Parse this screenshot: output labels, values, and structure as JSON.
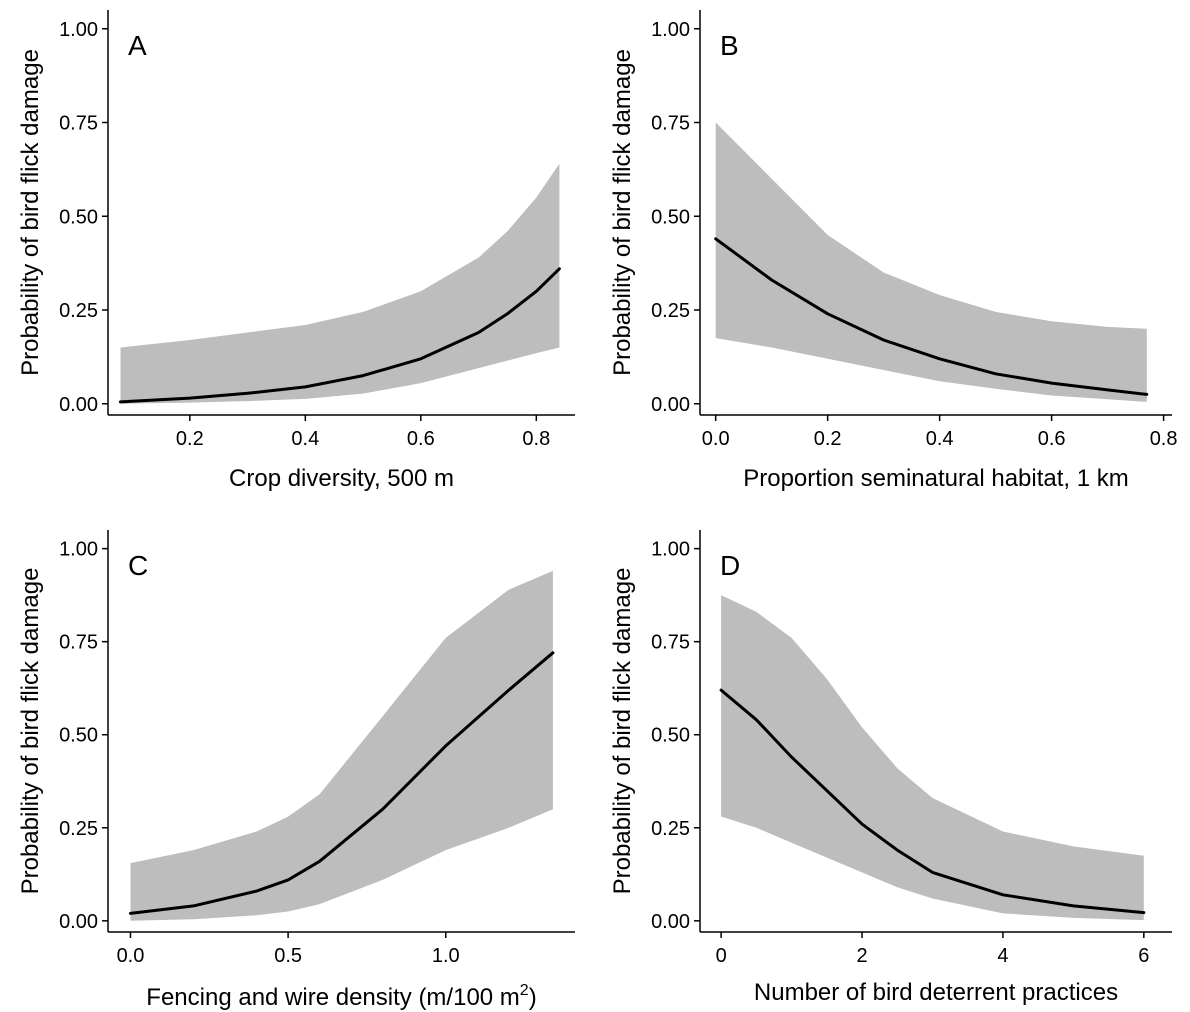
{
  "colors": {
    "band": "#bdbdbd",
    "line": "#000000",
    "axis": "#000000",
    "background": "#ffffff"
  },
  "chart_data": [
    {
      "panel": "A",
      "type": "line",
      "xlabel": "Crop diversity, 500 m",
      "ylabel": "Probability of bird flick damage",
      "xlim": [
        0.0583,
        0.867
      ],
      "ylim": [
        -0.03,
        1.05
      ],
      "xticks": [
        0.2,
        0.4,
        0.6,
        0.8
      ],
      "xtick_labels": [
        "0.2",
        "0.4",
        "0.6",
        "0.8"
      ],
      "yticks": [
        0,
        0.25,
        0.5,
        0.75,
        1.0
      ],
      "ytick_labels": [
        "0.00",
        "0.25",
        "0.50",
        "0.75",
        "1.00"
      ],
      "grid": false,
      "series": [
        {
          "x": [
            0.08,
            0.2,
            0.3,
            0.4,
            0.5,
            0.6,
            0.7,
            0.75,
            0.8,
            0.84
          ],
          "y": [
            0.005,
            0.015,
            0.028,
            0.045,
            0.075,
            0.12,
            0.19,
            0.24,
            0.3,
            0.36
          ],
          "lower": [
            0.0,
            0.003,
            0.007,
            0.013,
            0.027,
            0.055,
            0.095,
            0.115,
            0.135,
            0.15
          ],
          "upper": [
            0.15,
            0.17,
            0.19,
            0.21,
            0.245,
            0.3,
            0.39,
            0.46,
            0.55,
            0.64
          ]
        }
      ]
    },
    {
      "panel": "B",
      "type": "line",
      "xlabel": "Proportion seminatural habitat, 1 km",
      "ylabel": "Probability of bird flick damage",
      "xlim": [
        -0.028,
        0.815
      ],
      "ylim": [
        -0.03,
        1.05
      ],
      "xticks": [
        0.0,
        0.2,
        0.4,
        0.6,
        0.8
      ],
      "xtick_labels": [
        "0.0",
        "0.2",
        "0.4",
        "0.6",
        "0.8"
      ],
      "yticks": [
        0,
        0.25,
        0.5,
        0.75,
        1.0
      ],
      "ytick_labels": [
        "0.00",
        "0.25",
        "0.50",
        "0.75",
        "1.00"
      ],
      "grid": false,
      "series": [
        {
          "x": [
            0.0,
            0.1,
            0.2,
            0.3,
            0.4,
            0.5,
            0.6,
            0.7,
            0.77
          ],
          "y": [
            0.44,
            0.33,
            0.24,
            0.17,
            0.12,
            0.08,
            0.055,
            0.037,
            0.025
          ],
          "lower": [
            0.175,
            0.15,
            0.12,
            0.09,
            0.06,
            0.04,
            0.022,
            0.012,
            0.005
          ],
          "upper": [
            0.75,
            0.6,
            0.45,
            0.35,
            0.29,
            0.245,
            0.22,
            0.205,
            0.2
          ]
        }
      ]
    },
    {
      "panel": "C",
      "type": "line",
      "xlabel": "Fencing and wire density (m/100 m",
      "xlabel_sup": "2",
      "xlabel_end": ")",
      "ylabel": "Probability of bird flick damage",
      "xlim": [
        -0.0713,
        1.41
      ],
      "ylim": [
        -0.03,
        1.05
      ],
      "xticks": [
        0.0,
        0.5,
        1.0
      ],
      "xtick_labels": [
        "0.0",
        "0.5",
        "1.0"
      ],
      "yticks": [
        0,
        0.25,
        0.5,
        0.75,
        1.0
      ],
      "ytick_labels": [
        "0.00",
        "0.25",
        "0.50",
        "0.75",
        "1.00"
      ],
      "grid": false,
      "series": [
        {
          "x": [
            0.0,
            0.2,
            0.4,
            0.5,
            0.6,
            0.8,
            1.0,
            1.2,
            1.34
          ],
          "y": [
            0.02,
            0.04,
            0.08,
            0.11,
            0.16,
            0.3,
            0.47,
            0.62,
            0.72
          ],
          "lower": [
            0.0,
            0.004,
            0.015,
            0.025,
            0.045,
            0.11,
            0.19,
            0.25,
            0.3
          ],
          "upper": [
            0.155,
            0.19,
            0.24,
            0.28,
            0.34,
            0.55,
            0.76,
            0.89,
            0.94
          ]
        }
      ]
    },
    {
      "panel": "D",
      "type": "line",
      "xlabel": "Number of bird deterrent practices",
      "ylabel": "Probability of bird flick damage",
      "xlim": [
        -0.3,
        6.4
      ],
      "ylim": [
        -0.03,
        1.05
      ],
      "xticks": [
        0,
        2,
        4,
        6
      ],
      "xtick_labels": [
        "0",
        "2",
        "4",
        "6"
      ],
      "yticks": [
        0,
        0.25,
        0.5,
        0.75,
        1.0
      ],
      "ytick_labels": [
        "0.00",
        "0.25",
        "0.50",
        "0.75",
        "1.00"
      ],
      "grid": false,
      "series": [
        {
          "x": [
            0,
            0.5,
            1,
            1.5,
            2,
            2.5,
            3,
            4,
            5,
            6
          ],
          "y": [
            0.62,
            0.54,
            0.44,
            0.35,
            0.26,
            0.19,
            0.13,
            0.07,
            0.04,
            0.022
          ],
          "lower": [
            0.28,
            0.25,
            0.21,
            0.17,
            0.13,
            0.09,
            0.06,
            0.02,
            0.008,
            0.002
          ],
          "upper": [
            0.875,
            0.83,
            0.76,
            0.65,
            0.52,
            0.41,
            0.33,
            0.24,
            0.2,
            0.175
          ]
        }
      ]
    }
  ]
}
